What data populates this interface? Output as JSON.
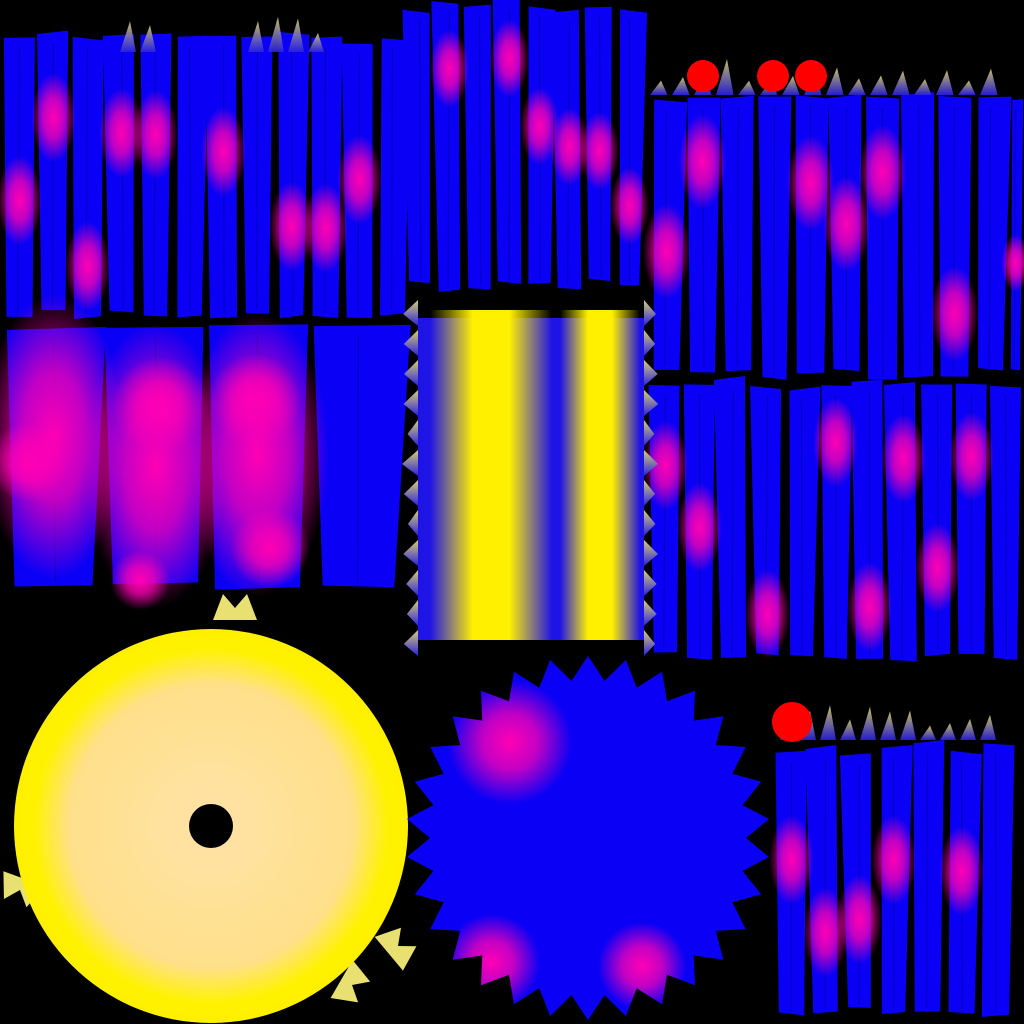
{
  "colors": {
    "background": "#000000",
    "strip_base": "#0a00f5",
    "glow": "#ff00b4",
    "yellow": "#fff000",
    "cream": "#ffe3a0",
    "red": "#ff0000",
    "fringe": "#b4b460"
  },
  "icons": [
    "gear-icon"
  ]
}
